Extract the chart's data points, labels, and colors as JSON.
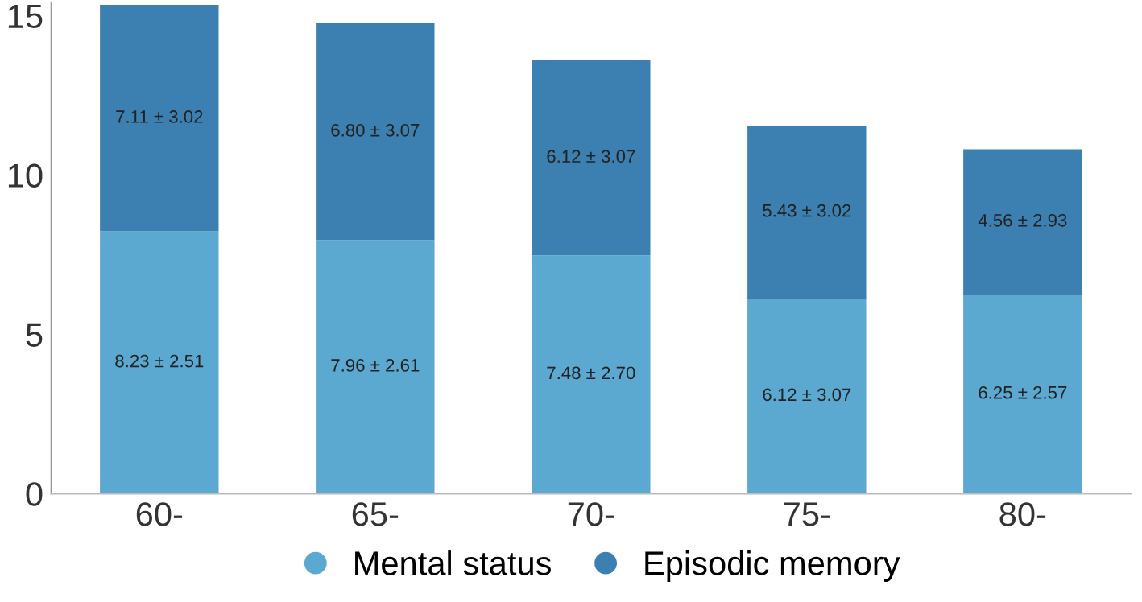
{
  "chart_data": {
    "type": "bar",
    "stacked": true,
    "categories": [
      "60-",
      "65-",
      "70-",
      "75-",
      "80-"
    ],
    "series": [
      {
        "name": "Mental status",
        "color": "#5ba8d0",
        "values": [
          8.23,
          7.96,
          7.48,
          6.12,
          6.25
        ],
        "value_labels": [
          "8.23 ± 2.51",
          "7.96 ± 2.61",
          "7.48 ± 2.70",
          "6.12 ± 3.07",
          "6.25 ± 2.57"
        ]
      },
      {
        "name": "Episodic memory",
        "color": "#3b80b0",
        "values": [
          7.11,
          6.8,
          6.12,
          5.43,
          4.56
        ],
        "value_labels": [
          "7.11 ± 3.02",
          "6.80 ± 3.07",
          "6.12 ± 3.07",
          "5.43 ± 3.02",
          "4.56 ± 2.93"
        ]
      }
    ],
    "ylim": [
      0,
      15.4
    ],
    "yticks": [
      0,
      5,
      10,
      15
    ],
    "grid": false,
    "legend": "bottom"
  }
}
